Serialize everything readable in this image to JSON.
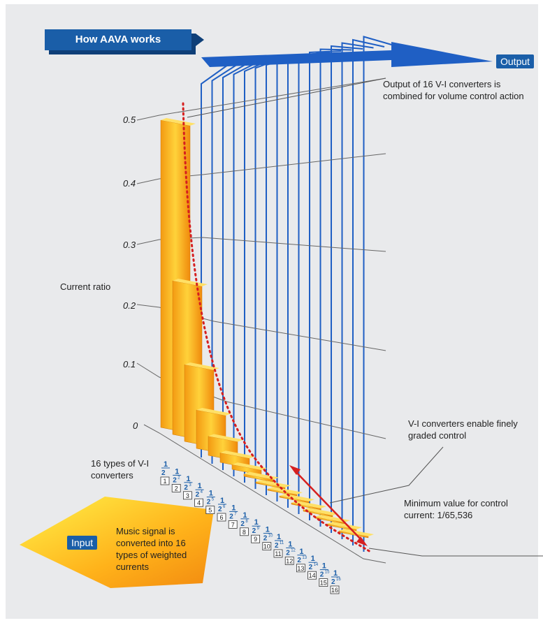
{
  "title": "How AAVA works",
  "output_label": "Output",
  "input_label": "Input",
  "y_axis_label": "Current ratio",
  "y_ticks": [
    "0.5",
    "0.4",
    "0.3",
    "0.2",
    "0.1",
    "0"
  ],
  "notes": {
    "output": "Output of 16 V-I converters is combined for volume control action",
    "graded": "V-I converters enable finely graded control",
    "minimum": "Minimum value for control current: 1/65,536",
    "types": "16 types of V-I converters",
    "music": "Music signal is converted into 16 types of weighted currents"
  },
  "colors": {
    "blue": "#1a5ea8",
    "wire": "#1f5fc4",
    "bar": "#f7a824",
    "curve": "#d61f1f"
  },
  "chart_data": {
    "type": "bar",
    "categories": [
      "1",
      "2",
      "3",
      "4",
      "5",
      "6",
      "7",
      "8",
      "9",
      "10",
      "11",
      "12",
      "13",
      "14",
      "15",
      "16"
    ],
    "fractions": [
      "1/2",
      "1/2^2",
      "1/2^3",
      "1/2^4",
      "1/2^5",
      "1/2^6",
      "1/2^7",
      "1/2^8",
      "1/2^9",
      "1/2^10",
      "1/2^11",
      "1/2^12",
      "1/2^13",
      "1/2^14",
      "1/2^15",
      "1/2^16"
    ],
    "values": [
      0.5,
      0.25,
      0.125,
      0.0625,
      0.03125,
      0.015625,
      0.0078125,
      0.00390625,
      0.001953125,
      0.0009765625,
      0.00048828125,
      0.000244140625,
      0.0001220703125,
      6.103515625e-05,
      3.0517578125e-05,
      1.52587890625e-05
    ],
    "ylabel": "Current ratio",
    "ylim": [
      0,
      0.5
    ]
  }
}
